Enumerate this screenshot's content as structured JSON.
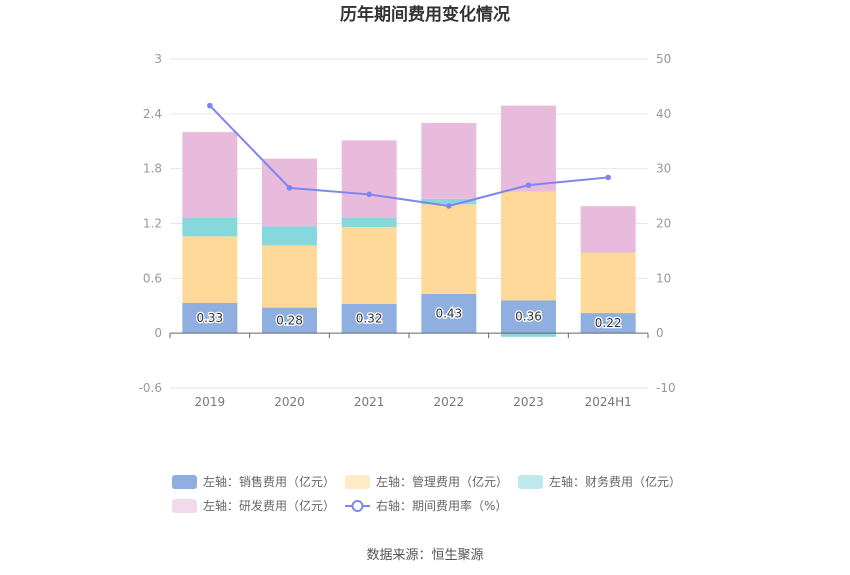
{
  "chart_data": {
    "type": "bar",
    "title": "历年期间费用变化情况",
    "categories": [
      "2019",
      "2020",
      "2021",
      "2022",
      "2023",
      "2024H1"
    ],
    "y_left": {
      "ylim": [
        -0.6,
        3
      ],
      "ticks": [
        "3",
        "2.4",
        "1.8",
        "1.2",
        "0.6",
        "0",
        "-0.6"
      ]
    },
    "y_right": {
      "ylim": [
        -10,
        50
      ],
      "ticks": [
        "50",
        "40",
        "30",
        "20",
        "10",
        "0",
        "-10"
      ]
    },
    "series": [
      {
        "name": "左轴：销售费用（亿元）",
        "kind": "bar",
        "axis": "left",
        "color": "#8eafdf",
        "values": [
          0.33,
          0.28,
          0.32,
          0.43,
          0.36,
          0.22
        ],
        "labels": [
          "0.33",
          "0.28",
          "0.32",
          "0.43",
          "0.36",
          "0.22"
        ]
      },
      {
        "name": "左轴：管理费用（亿元）",
        "kind": "bar",
        "axis": "left",
        "color": "#ffd99a",
        "values": [
          0.73,
          0.68,
          0.84,
          0.98,
          1.19,
          0.66
        ]
      },
      {
        "name": "左轴：财务费用（亿元）",
        "kind": "bar",
        "axis": "left",
        "color": "#86d8dc",
        "values": [
          0.2,
          0.21,
          0.1,
          0.06,
          -0.04,
          0.0
        ]
      },
      {
        "name": "左轴：研发费用（亿元）",
        "kind": "bar",
        "axis": "left",
        "color": "#e8bbdc",
        "values": [
          0.94,
          0.74,
          0.85,
          0.83,
          0.94,
          0.51
        ]
      },
      {
        "name": "右轴：期间费用率（%）",
        "kind": "line",
        "axis": "right",
        "color": "#7d85f0",
        "values": [
          41.5,
          26.5,
          25.3,
          23.2,
          27.0,
          28.4
        ]
      }
    ],
    "legend_position": "bottom",
    "source": "数据来源：恒生聚源"
  }
}
